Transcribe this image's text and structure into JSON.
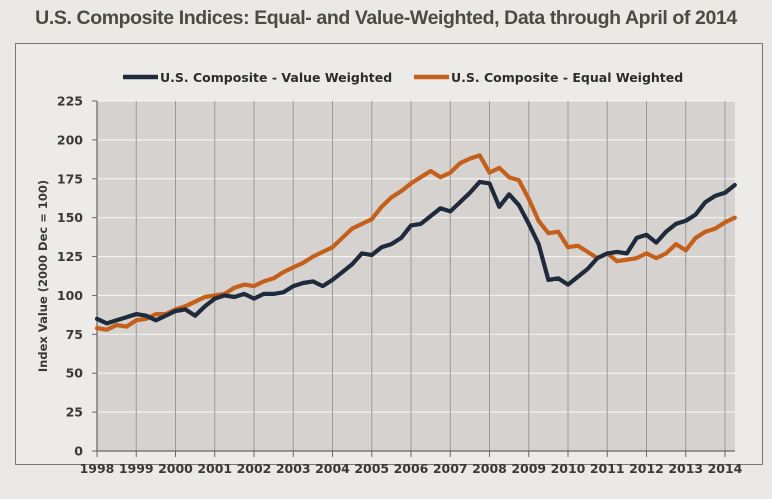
{
  "chart_data": {
    "type": "line",
    "title": "U.S. Composite Indices: Equal- and Value-Weighted, Data through April of 2014",
    "xlabel": "",
    "ylabel": "Index Value (2000 Dec = 100)",
    "ylim": [
      0,
      225
    ],
    "xlim": [
      1998,
      2014.25
    ],
    "yticks": [
      0,
      25,
      50,
      75,
      100,
      125,
      150,
      175,
      200,
      225
    ],
    "xticks": [
      "1998",
      "1999",
      "2000",
      "2001",
      "2002",
      "2003",
      "2004",
      "2005",
      "2006",
      "2007",
      "2008",
      "2009",
      "2010",
      "2011",
      "2012",
      "2013",
      "2014"
    ],
    "grid": true,
    "legend_position": "top",
    "x_step": 0.25,
    "x_start": 1998,
    "series": [
      {
        "name": "U.S. Composite - Value Weighted",
        "color": "#1f2a3c",
        "values": [
          85,
          82,
          84,
          86,
          88,
          87,
          84,
          87,
          90,
          91,
          87,
          93,
          98,
          100,
          99,
          101,
          98,
          101,
          101,
          102,
          106,
          108,
          109,
          106,
          110,
          115,
          120,
          127,
          126,
          131,
          133,
          137,
          145,
          146,
          151,
          156,
          154,
          160,
          166,
          173,
          172,
          157,
          165,
          158,
          146,
          133,
          110,
          111,
          107,
          112,
          117,
          124,
          127,
          128,
          127,
          137,
          139,
          134,
          141,
          146,
          148,
          152,
          160,
          164,
          166,
          171
        ]
      },
      {
        "name": "U.S. Composite - Equal Weighted",
        "color": "#c4601c",
        "values": [
          79,
          78,
          81,
          80,
          84,
          85,
          88,
          88,
          91,
          93,
          96,
          99,
          100,
          101,
          105,
          107,
          106,
          109,
          111,
          115,
          118,
          121,
          125,
          128,
          131,
          137,
          143,
          146,
          149,
          157,
          163,
          167,
          172,
          176,
          180,
          176,
          179,
          185,
          188,
          190,
          179,
          182,
          176,
          174,
          162,
          148,
          140,
          141,
          131,
          132,
          128,
          124,
          127,
          122,
          123,
          124,
          127,
          124,
          127,
          133,
          129,
          137,
          141,
          143,
          147,
          150
        ]
      }
    ]
  }
}
